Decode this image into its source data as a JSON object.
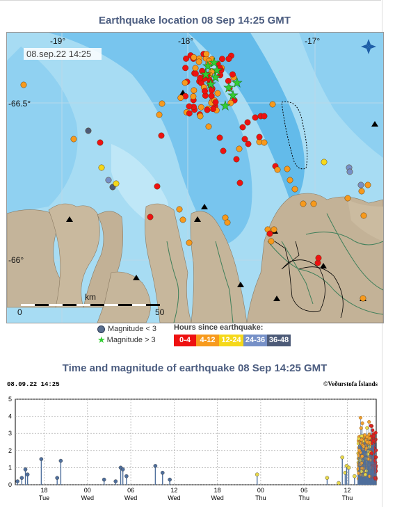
{
  "map_title": "Earthquake location   08 Sep 14:25 GMT",
  "chart_title": "Time and magnitude of earthquake   08 Sep 14:25 GMT",
  "map": {
    "timestamp": "08.sep.22  14:25",
    "lon_labels": [
      "-19°",
      "-18°",
      "-17°"
    ],
    "lat_labels": [
      "-66.5°",
      "-66°"
    ],
    "scale_label": "km",
    "scale_start": "0",
    "scale_end": "50",
    "compass_icon": "compass-icon"
  },
  "legend": {
    "mag_lt3": "Magnitude < 3",
    "mag_gt3": "Magnitude > 3",
    "hours_title": "Hours since earthquake:",
    "hours": [
      {
        "label": "0-4",
        "color": "#ee1111"
      },
      {
        "label": "4-12",
        "color": "#f79a1d"
      },
      {
        "label": "12-24",
        "color": "#f5d81a"
      },
      {
        "label": "24-36",
        "color": "#7690c7"
      },
      {
        "label": "36-48",
        "color": "#4d5b78"
      }
    ]
  },
  "chart": {
    "header_left": "08.09.22  14:25",
    "header_right": "©Veðurstofa Íslands",
    "y_ticks": [
      "0",
      "1",
      "2",
      "3",
      "4",
      "5"
    ],
    "x_ticks": [
      {
        "time": "18",
        "day": "Tue"
      },
      {
        "time": "00",
        "day": "Wed"
      },
      {
        "time": "06",
        "day": "Wed"
      },
      {
        "time": "12",
        "day": "Wed"
      },
      {
        "time": "18",
        "day": "Wed"
      },
      {
        "time": "00",
        "day": "Thu"
      },
      {
        "time": "06",
        "day": "Thu"
      },
      {
        "time": "12",
        "day": "Thu"
      }
    ]
  },
  "chart_data": {
    "type": "scatter",
    "title": "Time and magnitude of earthquake   08 Sep 14:25 GMT",
    "xlabel": "",
    "ylabel": "",
    "ylim": [
      0,
      5
    ],
    "x_unit": "hours since Tue 14:00",
    "events": [
      [
        0.3,
        0.2,
        "b"
      ],
      [
        0.9,
        0.4,
        "b"
      ],
      [
        1.4,
        0.9,
        "b"
      ],
      [
        1.7,
        0.6,
        "b"
      ],
      [
        3.6,
        1.5,
        "b"
      ],
      [
        5.8,
        0.4,
        "b"
      ],
      [
        6.3,
        1.4,
        "b"
      ],
      [
        12.3,
        0.3,
        "b"
      ],
      [
        13.9,
        0.2,
        "b"
      ],
      [
        14.6,
        1.0,
        "b"
      ],
      [
        14.9,
        0.9,
        "b"
      ],
      [
        15.4,
        0.5,
        "b"
      ],
      [
        19.4,
        1.1,
        "b"
      ],
      [
        20.4,
        0.7,
        "b"
      ],
      [
        21.4,
        0.3,
        "b"
      ],
      [
        33.5,
        0.6,
        "y"
      ],
      [
        43.2,
        0.4,
        "y"
      ],
      [
        44.8,
        0.1,
        "y"
      ],
      [
        45.3,
        1.6,
        "y"
      ],
      [
        45.7,
        0.7,
        "y"
      ],
      [
        45.9,
        1.1,
        "y"
      ],
      [
        46.2,
        1.0,
        "y"
      ],
      [
        47.0,
        0.5,
        "y"
      ]
    ]
  }
}
